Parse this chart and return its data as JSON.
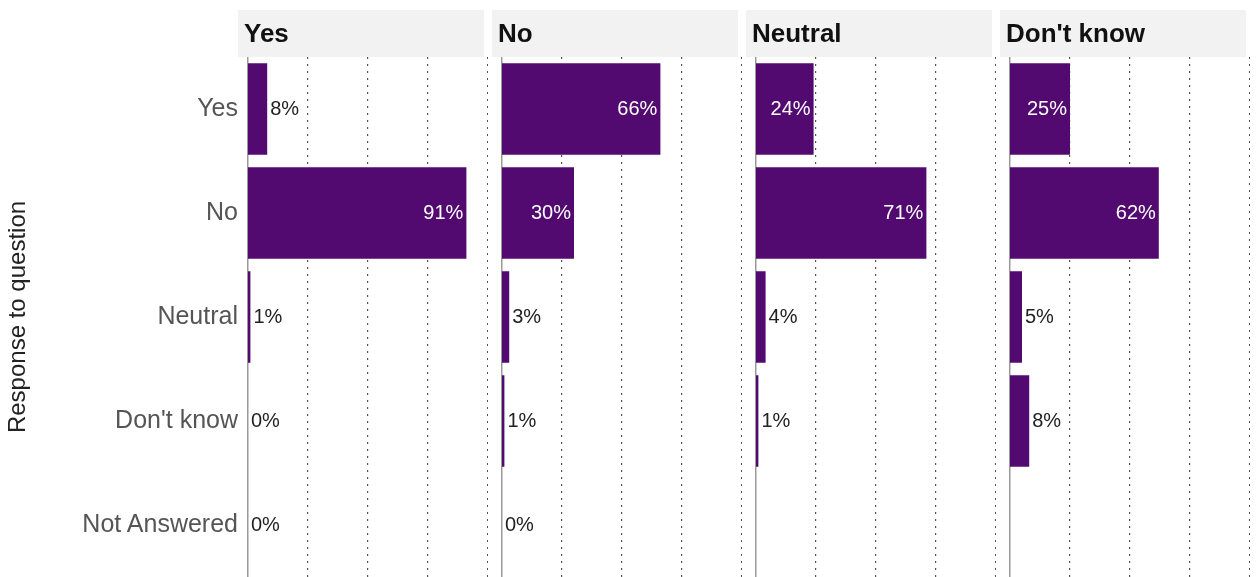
{
  "chart_data": [
    {
      "type": "bar",
      "orientation": "horizontal",
      "title": "Yes",
      "ylabel": "Response to question",
      "categories": [
        "Yes",
        "No",
        "Neutral",
        "Don't know",
        "Not Answered"
      ],
      "values": [
        8,
        91,
        1,
        0,
        0
      ],
      "value_labels": [
        "8%",
        "91%",
        "1%",
        "0%",
        "0%"
      ],
      "color": "#520a70",
      "xlim": [
        0,
        100
      ],
      "xticks": [
        {
          "value": 25,
          "label": null
        },
        {
          "value": 50,
          "label": null
        },
        {
          "value": 75,
          "label": null
        },
        {
          "value": 100,
          "label": null
        }
      ],
      "grid": "x",
      "tick_labels": "y"
    },
    {
      "type": "bar",
      "orientation": "horizontal",
      "title": "No",
      "categories": [
        null,
        null,
        null,
        null,
        null
      ],
      "values": [
        66,
        30,
        3,
        1,
        0
      ],
      "value_labels": [
        "66%",
        "30%",
        "3%",
        "1%",
        "0%"
      ],
      "color": "#520a70",
      "xlim": [
        0,
        100
      ],
      "xticks": [
        {
          "value": 25,
          "label": null
        },
        {
          "value": 50,
          "label": null
        },
        {
          "value": 75,
          "label": null
        },
        {
          "value": 100,
          "label": null
        }
      ],
      "grid": "x",
      "tick_labels": false
    },
    {
      "type": "bar",
      "orientation": "horizontal",
      "title": "Neutral",
      "categories": [
        null,
        null,
        null,
        null,
        null
      ],
      "values": [
        24,
        71,
        4,
        1,
        null
      ],
      "value_labels": [
        "24%",
        "71%",
        "4%",
        "1%",
        null
      ],
      "color": "#520a70",
      "xlim": [
        0,
        100
      ],
      "xticks": [
        {
          "value": 25,
          "label": null
        },
        {
          "value": 50,
          "label": null
        },
        {
          "value": 75,
          "label": null
        },
        {
          "value": 100,
          "label": null
        }
      ],
      "grid": "x",
      "tick_labels": false
    },
    {
      "type": "bar",
      "orientation": "horizontal",
      "title": "Don't know",
      "categories": [
        null,
        null,
        null,
        null,
        null
      ],
      "values": [
        25,
        62,
        5,
        8,
        null
      ],
      "value_labels": [
        "25%",
        "62%",
        "5%",
        "8%",
        null
      ],
      "color": "#520a70",
      "xlim": [
        0,
        100
      ],
      "xticks": [
        {
          "value": 25,
          "label": null
        },
        {
          "value": 50,
          "label": null
        },
        {
          "value": 75,
          "label": null
        },
        {
          "value": 100,
          "label": null
        }
      ],
      "grid": "x",
      "tick_labels": false
    }
  ]
}
